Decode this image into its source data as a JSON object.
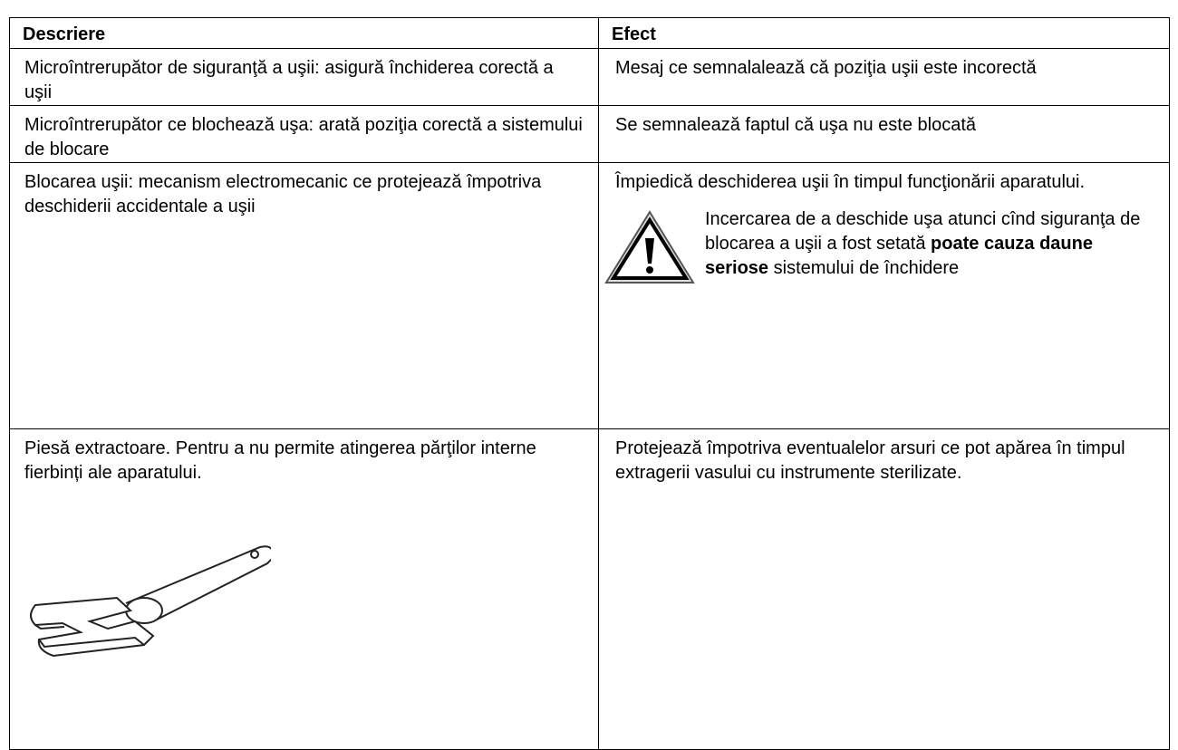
{
  "table": {
    "header": [
      "Descriere",
      "Efect"
    ],
    "rows": [
      {
        "description": "Microîntrerupător de siguranţă a uşii: asigură închiderea corectă a uşii",
        "effect": "Mesaj ce semnalalează că poziţia uşii este incorectă"
      },
      {
        "description": "Microîntrerupător ce blochează uşa: arată poziţia corectă a sistemului de blocare",
        "effect": "Se semnalează faptul că uşa nu este blocată"
      },
      {
        "description": "Blocarea uşii: mecanism electromecanic ce protejează împotriva deschiderii accidentale a uşii",
        "effect": "Împiedică deschiderea uşii în timpul funcţionării aparatului.",
        "warning": {
          "text": "Incercarea de a deschide uşa atunci cînd siguranţa de blocarea a uşii a fost setată",
          "bold": "poate cauza daune seriose",
          "text_after": "sistemului de închidere"
        }
      },
      {
        "description": "Piesă extractoare. Pentru a nu permite atingerea părţilor interne fierbinți ale aparatului.",
        "effect": "Protejează împotriva eventualelor arsuri ce pot apărea în timpul extragerii vasului cu instrumente sterilizate."
      }
    ]
  }
}
